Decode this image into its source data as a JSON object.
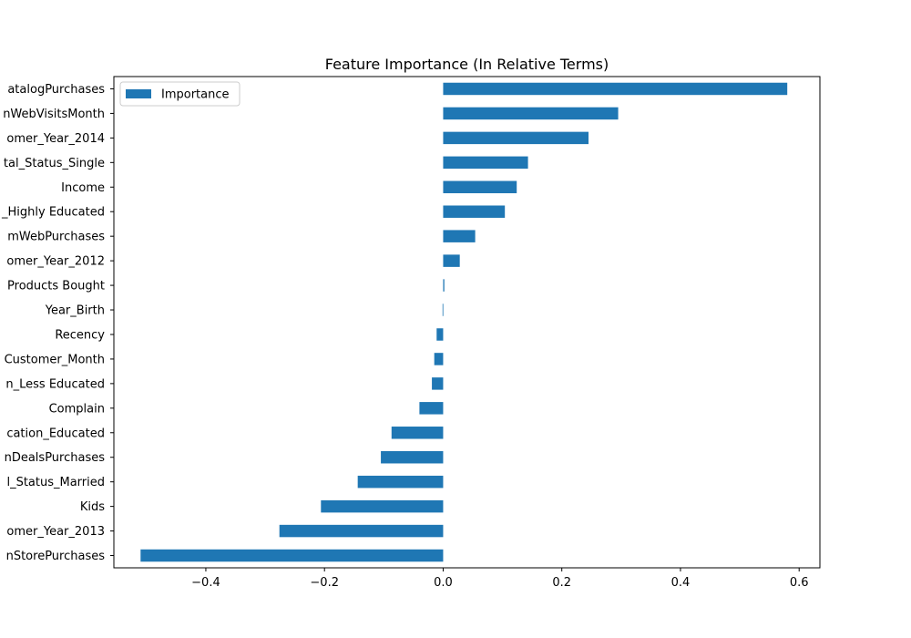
{
  "chart_data": {
    "type": "bar",
    "orientation": "horizontal",
    "title": "Feature Importance (In Relative Terms)",
    "xlabel": "",
    "ylabel": "",
    "xlim": [
      -0.555,
      0.635
    ],
    "xticks": [
      -0.4,
      -0.2,
      0.0,
      0.2,
      0.4,
      0.6
    ],
    "xtick_labels": [
      "−0.4",
      "−0.2",
      "0.0",
      "0.2",
      "0.4",
      "0.6"
    ],
    "grid": false,
    "legend_position": "upper-left",
    "color": "#1f77b4",
    "categories": [
      "atalogPurchases",
      "nWebVisitsMonth",
      "omer_Year_2014",
      "tal_Status_Single",
      "Income",
      "_Highly Educated",
      "mWebPurchases",
      "omer_Year_2012",
      "Products Bought",
      "Year_Birth",
      "Recency",
      "Customer_Month",
      "n_Less Educated",
      "Complain",
      "cation_Educated",
      "nDealsPurchases",
      "l_Status_Married",
      "Kids",
      "omer_Year_2013",
      "nStorePurchases"
    ],
    "series": [
      {
        "name": "Importance",
        "values": [
          0.58,
          0.295,
          0.245,
          0.143,
          0.124,
          0.104,
          0.054,
          0.028,
          0.002,
          -0.001,
          -0.011,
          -0.015,
          -0.019,
          -0.04,
          -0.087,
          -0.105,
          -0.144,
          -0.206,
          -0.276,
          -0.51
        ]
      }
    ]
  }
}
